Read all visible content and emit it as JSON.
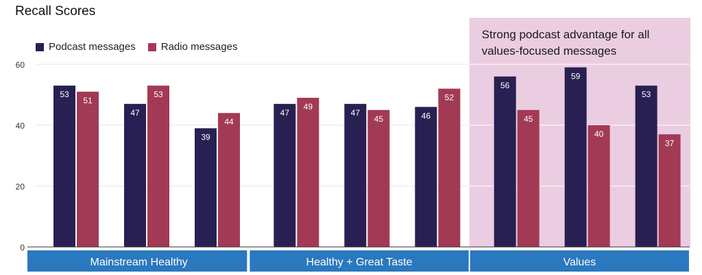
{
  "title": "Recall Scores",
  "legend": [
    {
      "name": "Podcast messages",
      "color": "#282052"
    },
    {
      "name": "Radio messages",
      "color": "#a33a55"
    }
  ],
  "chart_data": {
    "type": "bar",
    "title": "Recall Scores",
    "xlabel": "",
    "ylabel": "",
    "ylim": [
      0,
      60
    ],
    "yticks": [
      0,
      20,
      40,
      60
    ],
    "categories": [
      "",
      "",
      "",
      "",
      "",
      "",
      "",
      "",
      ""
    ],
    "groups": [
      {
        "label": "Mainstream Healthy",
        "count": 3
      },
      {
        "label": "Healthy + Great Taste",
        "count": 3
      },
      {
        "label": "Values",
        "count": 3
      }
    ],
    "series": [
      {
        "name": "Podcast messages",
        "color": "#282052",
        "values": [
          53,
          47,
          39,
          47,
          47,
          46,
          56,
          59,
          53
        ]
      },
      {
        "name": "Radio messages",
        "color": "#a33a55",
        "values": [
          51,
          53,
          44,
          49,
          45,
          52,
          45,
          40,
          37
        ]
      }
    ],
    "grid": true,
    "legend_position": "top-left",
    "annotation": {
      "text_lines": [
        "Strong podcast advantage for all",
        "values-focused messages"
      ],
      "group": "Values",
      "background": "#ebcde1"
    },
    "group_bar_color": "#2a78be"
  }
}
